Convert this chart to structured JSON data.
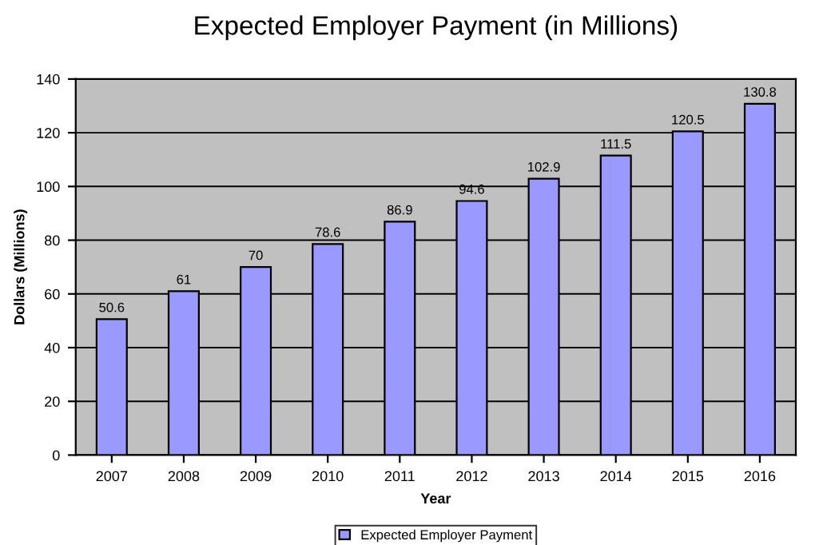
{
  "chart_data": {
    "type": "bar",
    "title": "Expected Employer Payment (in Millions)",
    "xlabel": "Year",
    "ylabel": "Dollars (Millions)",
    "categories": [
      "2007",
      "2008",
      "2009",
      "2010",
      "2011",
      "2012",
      "2013",
      "2014",
      "2015",
      "2016"
    ],
    "series": [
      {
        "name": "Expected Employer Payment",
        "color": "#9999ff",
        "values": [
          50.6,
          61,
          70,
          78.6,
          86.9,
          94.6,
          102.9,
          111.5,
          120.5,
          130.8
        ]
      }
    ],
    "ylim": [
      0,
      140
    ],
    "yticks": [
      0,
      20,
      40,
      60,
      80,
      100,
      120,
      140
    ],
    "grid": "y",
    "legend": "bottom",
    "data_labels": true
  }
}
